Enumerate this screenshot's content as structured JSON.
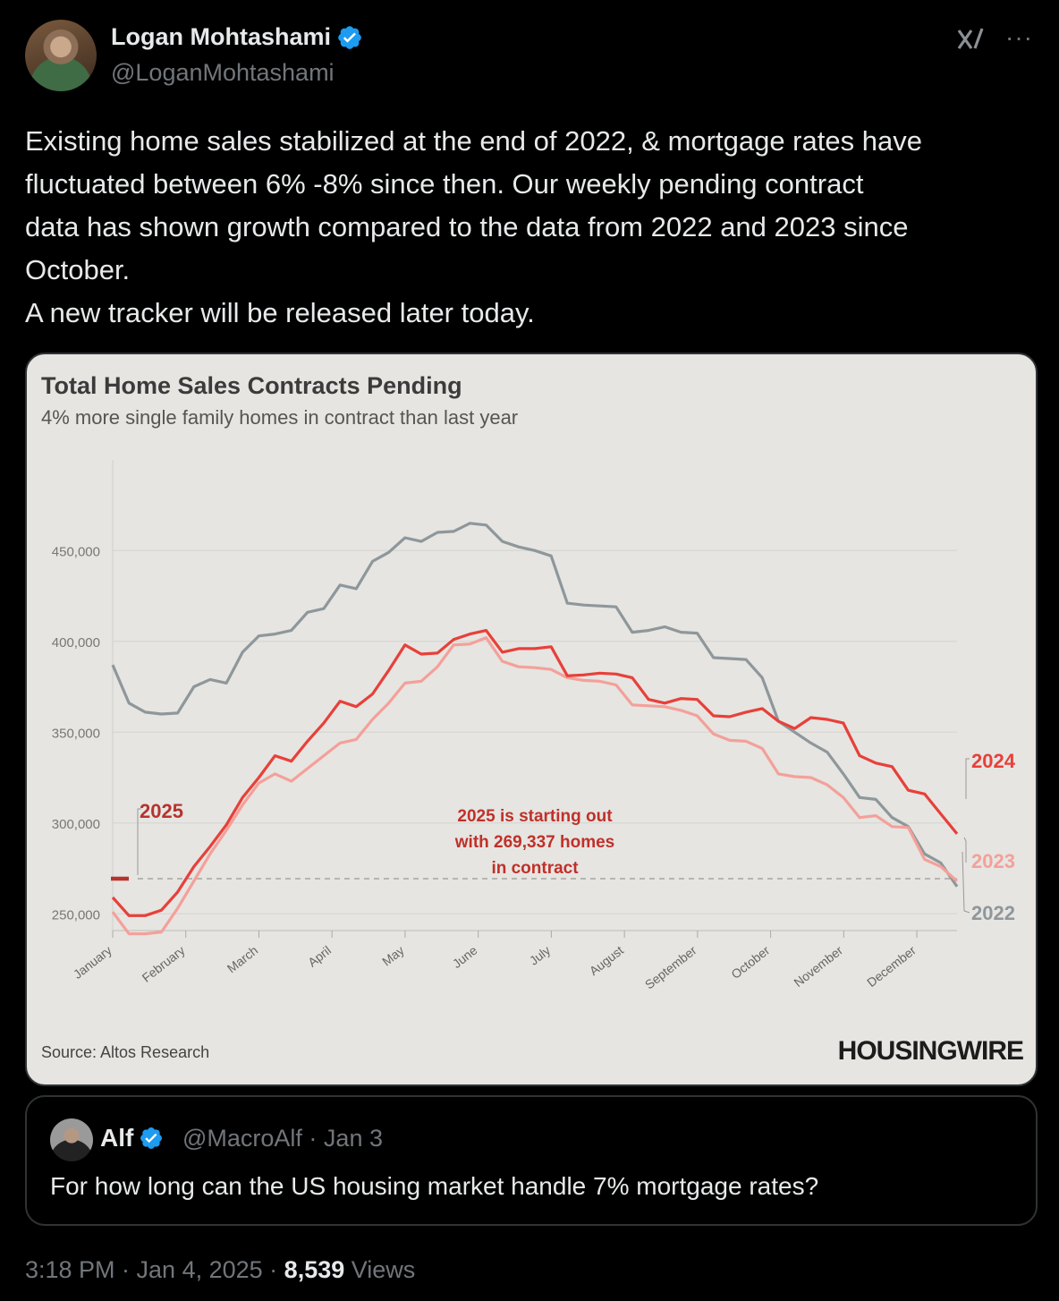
{
  "author": {
    "name": "Logan Mohtashami",
    "handle": "@LoganMohtashami"
  },
  "tweet": {
    "lines": [
      "Existing home sales stabilized at the end of 2022, & mortgage rates have",
      "fluctuated between 6% -8% since then. Our weekly pending contract",
      "data has shown growth compared to the data from 2022 and 2023 since",
      "October.",
      "A new tracker will be released later today."
    ]
  },
  "chart": {
    "title": "Total Home Sales Contracts Pending",
    "subtitle": "4% more single family homes in contract than last year",
    "source": "Source: Altos Research",
    "brand": "HOUSINGWIRE",
    "annotation": [
      "2025 is starting out",
      "with 269,337 homes",
      "in contract"
    ]
  },
  "chart_data": {
    "type": "line",
    "y_ticks": [
      "450,000",
      "400,000",
      "350,000",
      "300,000",
      "250,000"
    ],
    "y_tick_values": [
      450000,
      400000,
      350000,
      300000,
      250000
    ],
    "ylim": [
      220000,
      480000
    ],
    "months": [
      "January",
      "February",
      "March",
      "April",
      "May",
      "June",
      "July",
      "August",
      "September",
      "October",
      "November",
      "December"
    ],
    "series": [
      {
        "name": "2022",
        "color": "#8e979b",
        "values": [
          387000,
          366000,
          361000,
          360000,
          360500,
          375000,
          379000,
          377000,
          394000,
          403000,
          404000,
          406000,
          416000,
          418000,
          431000,
          429000,
          444000,
          449000,
          457000,
          455000,
          460000,
          460500,
          465000,
          464000,
          455000,
          452000,
          450000,
          447000,
          421000,
          420000,
          419500,
          419000,
          405000,
          406000,
          408000,
          405000,
          404500,
          391000,
          390500,
          390000,
          380000,
          356000,
          350000,
          344000,
          339000,
          327000,
          314000,
          313000,
          303000,
          298000,
          283000,
          278000,
          265000
        ]
      },
      {
        "name": "2023",
        "color": "#f4a09a",
        "values": [
          251000,
          239000,
          239000,
          240000,
          253000,
          268000,
          283000,
          296000,
          310000,
          322000,
          327000,
          323000,
          330000,
          337000,
          344000,
          346000,
          357000,
          366000,
          377000,
          378000,
          386000,
          398000,
          398500,
          402000,
          389000,
          386000,
          385500,
          384500,
          380000,
          378500,
          378000,
          376000,
          365000,
          364500,
          364000,
          362000,
          359000,
          349000,
          345500,
          345000,
          341000,
          327000,
          325500,
          325000,
          321000,
          314000,
          303000,
          304000,
          298000,
          297500,
          280000,
          276000,
          268000
        ]
      },
      {
        "name": "2024",
        "color": "#e8403a",
        "values": [
          259000,
          249000,
          249000,
          252000,
          262000,
          276000,
          287000,
          299000,
          314000,
          325000,
          337000,
          334000,
          345000,
          355000,
          367000,
          364000,
          371000,
          384000,
          398000,
          393000,
          393500,
          401000,
          404000,
          406000,
          394000,
          396000,
          396000,
          397000,
          381000,
          381500,
          382500,
          382000,
          380000,
          368000,
          366000,
          368500,
          368000,
          359000,
          358500,
          361000,
          363000,
          356000,
          352000,
          358000,
          357000,
          355000,
          337000,
          333000,
          331000,
          318000,
          316000,
          305000,
          294000
        ]
      },
      {
        "name": "2025",
        "color": "#b8322e",
        "values": [
          269337
        ]
      }
    ]
  },
  "quote": {
    "name": "Alf",
    "handle": "@MacroAlf · Jan 3",
    "text": "For how long can the US housing market handle 7% mortgage rates?"
  },
  "meta": {
    "time": "3:18 PM · Jan 4, 2025 · ",
    "views_count": "8,539",
    "views_label": " Views"
  }
}
